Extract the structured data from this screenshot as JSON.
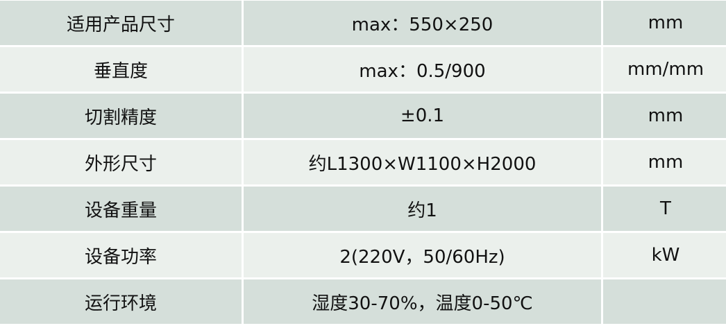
{
  "colors": {
    "row_dark": "#d5dfda",
    "row_light": "#ebf0ec",
    "grid": "#ffffff"
  },
  "rows": [
    {
      "name": "适用产品尺寸",
      "value": "max：550×250",
      "unit": "mm"
    },
    {
      "name": "垂直度",
      "value": "max：0.5/900",
      "unit": "mm/mm"
    },
    {
      "name": "切割精度",
      "value": "±0.1",
      "unit": "mm"
    },
    {
      "name": "外形尺寸",
      "value": "约L1300×W1100×H2000",
      "unit": "mm"
    },
    {
      "name": "设备重量",
      "value": "约1",
      "unit": "T"
    },
    {
      "name": "设备功率",
      "value": "2(220V，50/60Hz)",
      "unit": "kW"
    },
    {
      "name": "运行环境",
      "value": "湿度30-70%，温度0-50℃",
      "unit": ""
    }
  ]
}
